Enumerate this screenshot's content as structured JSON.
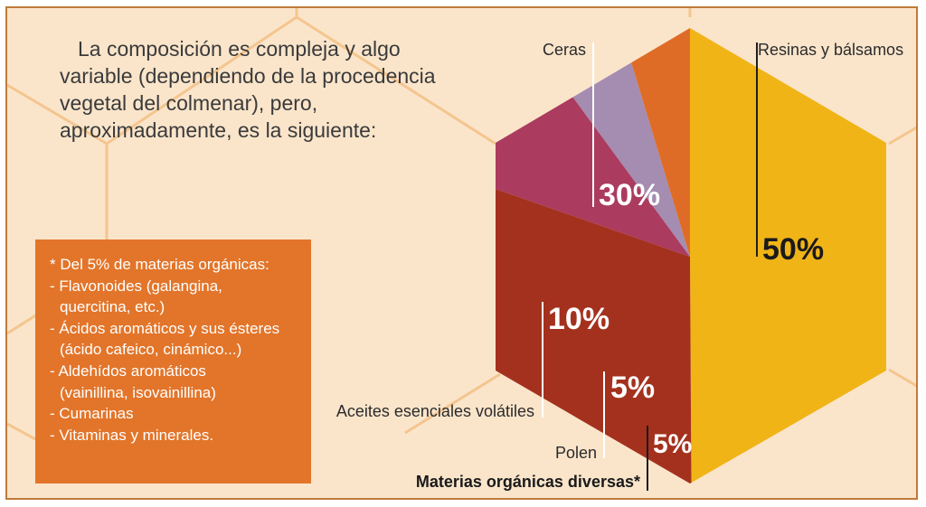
{
  "intro_text": "La composición es compleja y algo variable (dependiendo de la procedencia vegetal del colmenar), pero, aproximadamente, es la siguiente:",
  "note": {
    "items": [
      "* Del 5% de materias orgánicas:",
      "- Flavonoides (galangina,",
      "  quercitina, etc.)",
      "- Ácidos aromáticos y sus ésteres",
      "  (ácido cafeico, cinámico...)",
      "- Aldehídos aromáticos",
      "  (vainillina, isovainillina)",
      "- Cumarinas",
      "- Vitaminas y minerales."
    ]
  },
  "colors": {
    "background": "#fae5cb",
    "hex_lines": "#f4c58e",
    "note_box": "#e2752a",
    "frame": "#c07a3a"
  },
  "chart_data": {
    "type": "pie",
    "shape": "hexagon",
    "slices": [
      {
        "name": "Resinas y bálsamos",
        "value": 50,
        "label": "50%",
        "color": "#f1b417"
      },
      {
        "name": "Ceras",
        "value": 30,
        "label": "30%",
        "color": "#a4311e"
      },
      {
        "name": "Aceites esenciales volátiles",
        "value": 10,
        "label": "10%",
        "color": "#ab3b5f"
      },
      {
        "name": "Polen",
        "value": 5,
        "label": "5%",
        "color": "#a58cb1"
      },
      {
        "name": "Materias orgánicas diversas*",
        "value": 5,
        "label": "5%",
        "color": "#df6c26"
      }
    ]
  }
}
